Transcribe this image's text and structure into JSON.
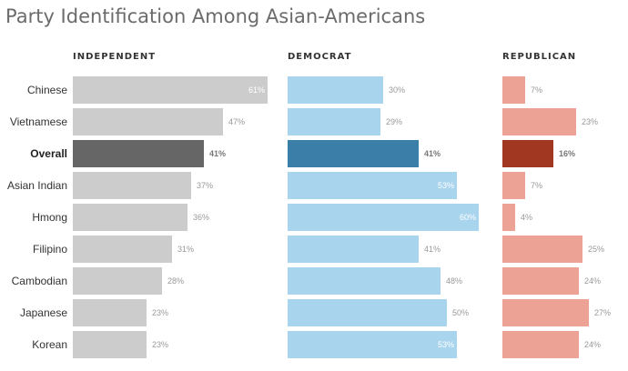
{
  "chart_data": {
    "type": "bar",
    "title": "Party Identification Among Asian-Americans",
    "categories": [
      "Chinese",
      "Vietnamese",
      "Overall",
      "Asian Indian",
      "Hmong",
      "Filipino",
      "Cambodian",
      "Japanese",
      "Korean"
    ],
    "highlight_category": "Overall",
    "series": [
      {
        "name": "INDEPENDENT",
        "values": [
          61,
          47,
          41,
          37,
          36,
          31,
          28,
          23,
          23
        ],
        "color": "#cccccc",
        "highlight_color": "#666666"
      },
      {
        "name": "DEMOCRAT",
        "values": [
          30,
          29,
          41,
          53,
          60,
          41,
          48,
          50,
          53
        ],
        "color": "#a9d4ee",
        "highlight_color": "#3b7ea8"
      },
      {
        "name": "REPUBLICAN",
        "values": [
          7,
          23,
          16,
          7,
          4,
          25,
          24,
          27,
          24
        ],
        "color": "#eca396",
        "highlight_color": "#a13621"
      }
    ],
    "value_suffix": "%"
  }
}
